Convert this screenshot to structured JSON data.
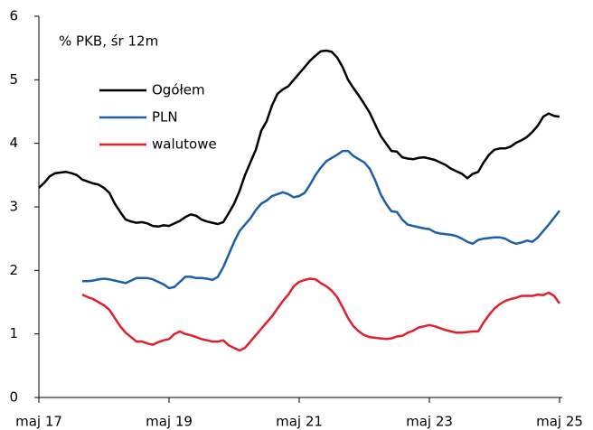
{
  "chart_data": {
    "type": "line",
    "annotation": "% PKB, śr 12m",
    "categories": [
      "maj 17",
      null,
      null,
      null,
      null,
      null,
      null,
      null,
      null,
      null,
      null,
      null,
      null,
      null,
      null,
      null,
      null,
      null,
      null,
      null,
      null,
      null,
      null,
      null,
      "maj 19",
      null,
      null,
      null,
      null,
      null,
      null,
      null,
      null,
      null,
      null,
      null,
      null,
      null,
      null,
      null,
      null,
      null,
      null,
      null,
      null,
      null,
      null,
      null,
      "maj 21",
      null,
      null,
      null,
      null,
      null,
      null,
      null,
      null,
      null,
      null,
      null,
      null,
      null,
      null,
      null,
      null,
      null,
      null,
      null,
      null,
      null,
      null,
      null,
      "maj 23",
      null,
      null,
      null,
      null,
      null,
      null,
      null,
      null,
      null,
      null,
      null,
      null,
      null,
      null,
      null,
      null,
      null,
      null,
      null,
      null,
      null,
      null,
      null,
      "maj 25"
    ],
    "series": [
      {
        "name": "Ogółem",
        "color": "#000000",
        "values": [
          3.3,
          3.38,
          3.48,
          3.53,
          3.54,
          3.55,
          3.53,
          3.5,
          3.43,
          3.4,
          3.37,
          3.35,
          3.3,
          3.22,
          3.05,
          2.92,
          2.8,
          2.77,
          2.75,
          2.76,
          2.74,
          2.7,
          2.69,
          2.71,
          2.7,
          2.74,
          2.78,
          2.84,
          2.88,
          2.86,
          2.8,
          2.77,
          2.75,
          2.73,
          2.76,
          2.9,
          3.05,
          3.25,
          3.5,
          3.7,
          3.9,
          4.2,
          4.35,
          4.6,
          4.78,
          4.85,
          4.9,
          5.0,
          5.1,
          5.2,
          5.3,
          5.38,
          5.45,
          5.46,
          5.44,
          5.35,
          5.2,
          5.0,
          4.87,
          4.75,
          4.62,
          4.48,
          4.3,
          4.12,
          4.0,
          3.88,
          3.87,
          3.78,
          3.76,
          3.75,
          3.77,
          3.78,
          3.76,
          3.74,
          3.7,
          3.66,
          3.6,
          3.56,
          3.52,
          3.45,
          3.52,
          3.55,
          3.7,
          3.82,
          3.9,
          3.92,
          3.92,
          3.95,
          4.01,
          4.05,
          4.1,
          4.18,
          4.28,
          4.42,
          4.47,
          4.43,
          4.42
        ]
      },
      {
        "name": "PLN",
        "color": "#1f5fa8",
        "values": [
          null,
          null,
          null,
          null,
          null,
          null,
          null,
          null,
          1.83,
          1.83,
          1.84,
          1.86,
          1.87,
          1.86,
          1.84,
          1.82,
          1.8,
          1.84,
          1.88,
          1.88,
          1.88,
          1.86,
          1.82,
          1.78,
          1.72,
          1.74,
          1.82,
          1.9,
          1.9,
          1.88,
          1.88,
          1.87,
          1.85,
          1.9,
          2.05,
          2.25,
          2.45,
          2.62,
          2.72,
          2.82,
          2.95,
          3.05,
          3.1,
          3.17,
          3.2,
          3.23,
          3.2,
          3.15,
          3.17,
          3.22,
          3.35,
          3.5,
          3.62,
          3.72,
          3.77,
          3.82,
          3.88,
          3.88,
          3.8,
          3.75,
          3.7,
          3.6,
          3.42,
          3.2,
          3.05,
          2.93,
          2.92,
          2.8,
          2.72,
          2.7,
          2.68,
          2.66,
          2.65,
          2.6,
          2.58,
          2.57,
          2.56,
          2.54,
          2.5,
          2.45,
          2.42,
          2.48,
          2.5,
          2.51,
          2.52,
          2.52,
          2.5,
          2.45,
          2.42,
          2.44,
          2.47,
          2.45,
          2.52,
          2.62,
          2.72,
          2.83,
          2.94
        ]
      },
      {
        "name": "walutowe",
        "color": "#e0202e",
        "values": [
          null,
          null,
          null,
          null,
          null,
          null,
          null,
          null,
          1.62,
          1.58,
          1.55,
          1.5,
          1.45,
          1.38,
          1.25,
          1.12,
          1.02,
          0.95,
          0.88,
          0.88,
          0.85,
          0.83,
          0.87,
          0.9,
          0.92,
          1.0,
          1.04,
          1.0,
          0.98,
          0.95,
          0.92,
          0.9,
          0.88,
          0.88,
          0.9,
          0.82,
          0.78,
          0.74,
          0.78,
          0.88,
          0.98,
          1.08,
          1.18,
          1.28,
          1.4,
          1.52,
          1.62,
          1.75,
          1.82,
          1.85,
          1.87,
          1.86,
          1.8,
          1.75,
          1.68,
          1.58,
          1.42,
          1.25,
          1.12,
          1.04,
          0.98,
          0.95,
          0.94,
          0.93,
          0.92,
          0.93,
          0.96,
          0.97,
          1.02,
          1.05,
          1.1,
          1.12,
          1.14,
          1.12,
          1.09,
          1.06,
          1.04,
          1.02,
          1.02,
          1.03,
          1.04,
          1.04,
          1.18,
          1.3,
          1.4,
          1.47,
          1.52,
          1.55,
          1.57,
          1.6,
          1.6,
          1.6,
          1.62,
          1.61,
          1.65,
          1.6,
          1.48
        ]
      }
    ],
    "ylim": [
      0,
      6
    ],
    "yticks": [
      0,
      1,
      2,
      3,
      4,
      5,
      6
    ],
    "grid": false,
    "legend": "upper-left"
  }
}
